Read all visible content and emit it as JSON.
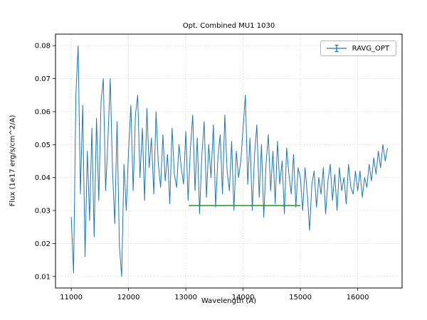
{
  "chart_data": {
    "type": "line",
    "title": "Opt. Combined MU1 1030",
    "xlabel": "Wavelength (A)",
    "ylabel": "Flux (1e17 erg/s/cm^2/A)",
    "xlim": [
      10725,
      16775
    ],
    "ylim": [
      0.0065,
      0.0835
    ],
    "x_ticks": [
      11000,
      12000,
      13000,
      14000,
      15000,
      16000
    ],
    "y_ticks": [
      0.01,
      0.02,
      0.03,
      0.04,
      0.05,
      0.06,
      0.07,
      0.08
    ],
    "grid": true,
    "grid_color": "#c9c9c9",
    "legend": {
      "label": "RAVG_OPT",
      "position": "upper right"
    },
    "series": [
      {
        "name": "RAVG_OPT",
        "color": "#1f77b4",
        "style": "errorbar-line",
        "x_start": 11000,
        "x_step": 40,
        "y": [
          0.028,
          0.011,
          0.065,
          0.08,
          0.035,
          0.062,
          0.016,
          0.048,
          0.027,
          0.055,
          0.022,
          0.058,
          0.033,
          0.063,
          0.07,
          0.036,
          0.052,
          0.07,
          0.042,
          0.026,
          0.057,
          0.019,
          0.01,
          0.044,
          0.03,
          0.048,
          0.062,
          0.036,
          0.059,
          0.065,
          0.04,
          0.055,
          0.033,
          0.061,
          0.043,
          0.052,
          0.035,
          0.06,
          0.044,
          0.037,
          0.053,
          0.039,
          0.047,
          0.032,
          0.055,
          0.041,
          0.037,
          0.05,
          0.043,
          0.038,
          0.054,
          0.033,
          0.049,
          0.059,
          0.036,
          0.052,
          0.029,
          0.047,
          0.057,
          0.034,
          0.05,
          0.04,
          0.056,
          0.031,
          0.046,
          0.053,
          0.035,
          0.059,
          0.042,
          0.036,
          0.051,
          0.03,
          0.048,
          0.04,
          0.045,
          0.055,
          0.065,
          0.038,
          0.052,
          0.03,
          0.047,
          0.056,
          0.034,
          0.05,
          0.028,
          0.044,
          0.053,
          0.036,
          0.048,
          0.032,
          0.051,
          0.038,
          0.045,
          0.029,
          0.049,
          0.041,
          0.035,
          0.047,
          0.031,
          0.043,
          0.04,
          0.03,
          0.043,
          0.035,
          0.024,
          0.038,
          0.042,
          0.031,
          0.04,
          0.035,
          0.043,
          0.029,
          0.039,
          0.044,
          0.033,
          0.041,
          0.03,
          0.043,
          0.036,
          0.04,
          0.032,
          0.044,
          0.037,
          0.035,
          0.042,
          0.036,
          0.042,
          0.034,
          0.04,
          0.037,
          0.044,
          0.039,
          0.046,
          0.041,
          0.048,
          0.043,
          0.05,
          0.045,
          0.049
        ]
      },
      {
        "name": "baseline-segment",
        "color": "#2ca02c",
        "style": "flat-line",
        "x": [
          13050,
          15000
        ],
        "y2": [
          0.0315,
          0.0315
        ]
      }
    ]
  }
}
